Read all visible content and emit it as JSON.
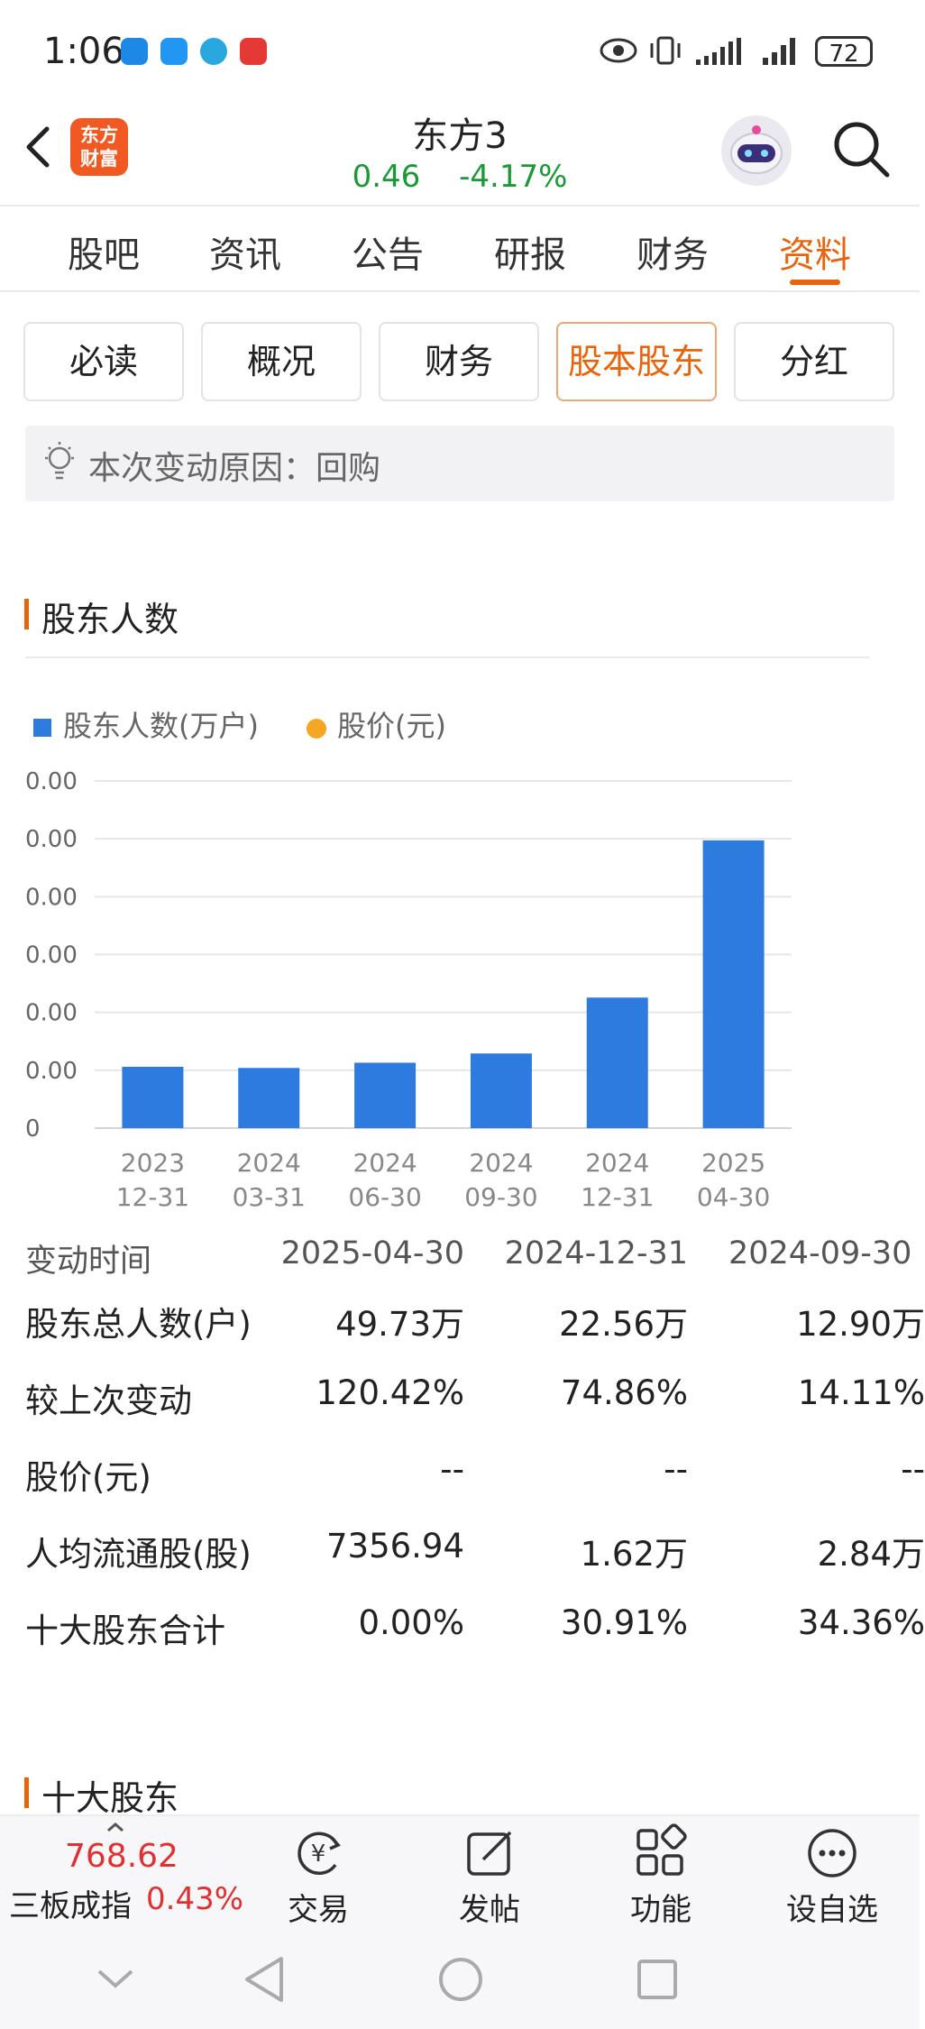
{
  "status_bar": {
    "time": "1:06",
    "battery": "72"
  },
  "header": {
    "logo_text_line1": "东方",
    "logo_text_line2": "财富",
    "title": "东方3",
    "price": "0.46",
    "change_pct": "-4.17%"
  },
  "main_tabs": [
    {
      "label": "股吧"
    },
    {
      "label": "资讯"
    },
    {
      "label": "公告"
    },
    {
      "label": "研报"
    },
    {
      "label": "财务"
    },
    {
      "label": "资料",
      "active": true
    }
  ],
  "sub_tabs": [
    {
      "label": "必读"
    },
    {
      "label": "概况"
    },
    {
      "label": "财务"
    },
    {
      "label": "股本股东",
      "active": true
    },
    {
      "label": "分红"
    }
  ],
  "reason": {
    "text": "本次变动原因：回购"
  },
  "section_holders": {
    "title": "股东人数"
  },
  "chart_data": {
    "type": "bar",
    "legend": [
      {
        "name": "股东人数(万户)",
        "color": "#2e7be0",
        "marker": "square"
      },
      {
        "name": "股价(元)",
        "color": "#f5a623",
        "marker": "dot"
      }
    ],
    "y_tick_labels": [
      "0",
      "0.00",
      "0.00",
      "0.00",
      "0.00",
      "0.00",
      "0.00"
    ],
    "categories": [
      {
        "year": "2023",
        "date": "12-31"
      },
      {
        "year": "2024",
        "date": "03-31"
      },
      {
        "year": "2024",
        "date": "06-30"
      },
      {
        "year": "2024",
        "date": "09-30"
      },
      {
        "year": "2024",
        "date": "12-31"
      },
      {
        "year": "2025",
        "date": "04-30"
      }
    ],
    "series": [
      {
        "name": "股东人数(万户)",
        "values": [
          10.6,
          10.4,
          11.3,
          12.9,
          22.56,
          49.73
        ]
      }
    ],
    "ylim": [
      0,
      60
    ],
    "grid": true,
    "legend_placement": "top-left"
  },
  "holders_table": {
    "header_label": "变动时间",
    "columns": [
      "2025-04-30",
      "2024-12-31",
      "2024-09-30"
    ],
    "rows": [
      {
        "label": "股东总人数(户)",
        "values": [
          "49.73万",
          "22.56万",
          "12.90万"
        ]
      },
      {
        "label": "较上次变动",
        "values": [
          "120.42%",
          "74.86%",
          "14.11%"
        ]
      },
      {
        "label": "股价(元)",
        "values": [
          "--",
          "--",
          "--"
        ]
      },
      {
        "label": "人均流通股(股)",
        "values": [
          "7356.94",
          "1.62万",
          "2.84万"
        ]
      },
      {
        "label": "十大股东合计",
        "values": [
          "0.00%",
          "30.91%",
          "34.36%"
        ]
      }
    ]
  },
  "section_top10": {
    "title": "十大股东"
  },
  "bottom_bar": {
    "index_value": "768.62",
    "index_name": "三板成指",
    "index_pct": "0.43%",
    "nav": [
      {
        "label": "交易",
        "icon": "trade-icon"
      },
      {
        "label": "发帖",
        "icon": "post-icon"
      },
      {
        "label": "功能",
        "icon": "apps-icon"
      },
      {
        "label": "设自选",
        "icon": "more-icon"
      }
    ]
  },
  "colors": {
    "accent": "#e8640c",
    "bar": "#2e7be0",
    "up": "#e03030",
    "down": "#1a9a34"
  }
}
